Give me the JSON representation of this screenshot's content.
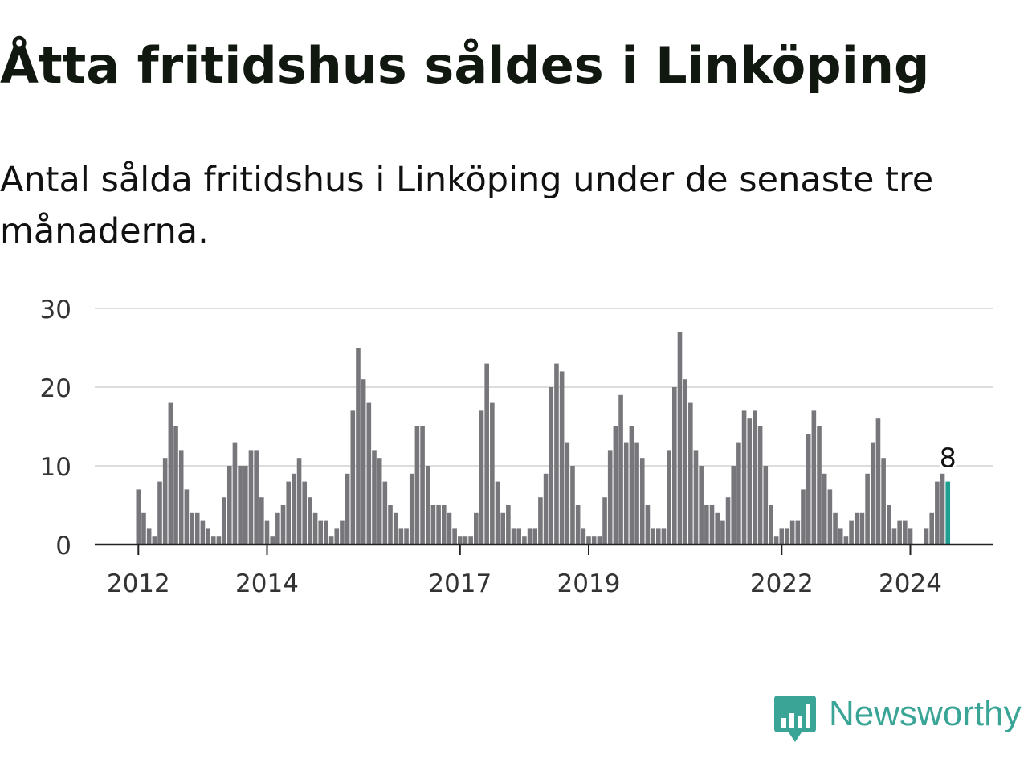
{
  "header": {
    "title": "Åtta fritidshus såldes i Linköping",
    "subtitle": "Antal sålda fritidshus i Linköping under de senaste tre månaderna."
  },
  "brand": {
    "name": "Newsworthy",
    "logo_icon": "bar-chart-speech-bubble-icon",
    "color": "#3aa597"
  },
  "colors": {
    "bar": "#77767a",
    "highlight": "#1f9e92",
    "grid": "#dddddd",
    "axis": "#222222"
  },
  "chart_data": {
    "type": "bar",
    "title": "Åtta fritidshus såldes i Linköping",
    "subtitle": "Antal sålda fritidshus i Linköping under de senaste tre månaderna.",
    "xlabel": "",
    "ylabel": "",
    "ylim": [
      0,
      30
    ],
    "yticks": [
      0,
      10,
      20,
      30
    ],
    "grid": true,
    "legend": "none",
    "x_start": "2012-01",
    "frequency": "monthly",
    "x_ticks": [
      {
        "label": "2012",
        "month": "2012-01"
      },
      {
        "label": "2014",
        "month": "2014-01"
      },
      {
        "label": "2017",
        "month": "2017-01"
      },
      {
        "label": "2019",
        "month": "2019-01"
      },
      {
        "label": "2022",
        "month": "2022-01"
      },
      {
        "label": "2024",
        "month": "2024-01"
      }
    ],
    "values": [
      7,
      4,
      2,
      1,
      8,
      11,
      18,
      15,
      12,
      7,
      4,
      4,
      3,
      2,
      1,
      1,
      6,
      10,
      13,
      10,
      10,
      12,
      12,
      6,
      3,
      1,
      4,
      5,
      8,
      9,
      11,
      8,
      6,
      4,
      3,
      3,
      1,
      2,
      3,
      9,
      17,
      25,
      21,
      18,
      12,
      11,
      8,
      5,
      4,
      2,
      2,
      9,
      15,
      15,
      10,
      5,
      5,
      5,
      4,
      2,
      1,
      1,
      1,
      4,
      17,
      23,
      18,
      8,
      4,
      5,
      2,
      2,
      1,
      2,
      2,
      6,
      9,
      20,
      23,
      22,
      13,
      10,
      5,
      2,
      1,
      1,
      1,
      6,
      12,
      15,
      19,
      13,
      15,
      13,
      11,
      5,
      2,
      2,
      2,
      12,
      20,
      27,
      21,
      18,
      12,
      10,
      5,
      5,
      4,
      3,
      6,
      10,
      13,
      17,
      16,
      17,
      15,
      10,
      5,
      1,
      2,
      2,
      3,
      3,
      7,
      14,
      17,
      15,
      9,
      7,
      4,
      2,
      1,
      3,
      4,
      4,
      9,
      13,
      16,
      11,
      5,
      2,
      3,
      3,
      2,
      0,
      0,
      2,
      4,
      8,
      9,
      8
    ],
    "highlight_index": 151,
    "highlight_label": "8"
  }
}
